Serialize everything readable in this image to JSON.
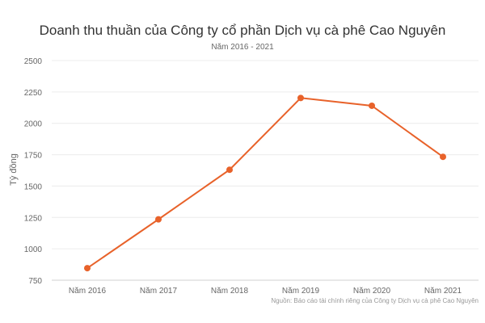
{
  "chart_data": {
    "type": "line",
    "title": "Doanh thu thuần của Công ty cổ phần Dịch vụ cà phê Cao Nguyên",
    "subtitle": "Năm 2016 - 2021",
    "xlabel": "",
    "ylabel": "Tỷ đồng",
    "categories": [
      "Năm 2016",
      "Năm 2017",
      "Năm 2018",
      "Năm 2019",
      "Năm 2020",
      "Năm 2021"
    ],
    "series": [
      {
        "name": "Doanh thu thuần",
        "values": [
          846,
          1235,
          1630,
          2202,
          2140,
          1733
        ],
        "color": "#e8622a"
      }
    ],
    "ylim": [
      750,
      2500
    ],
    "yticks": [
      750,
      1000,
      1250,
      1500,
      1750,
      2000,
      2250,
      2500
    ],
    "grid": true,
    "legend": "none",
    "source": "Nguồn: Báo cáo tài chính riêng của Công ty Dịch vụ cà phê Cao Nguyên"
  }
}
